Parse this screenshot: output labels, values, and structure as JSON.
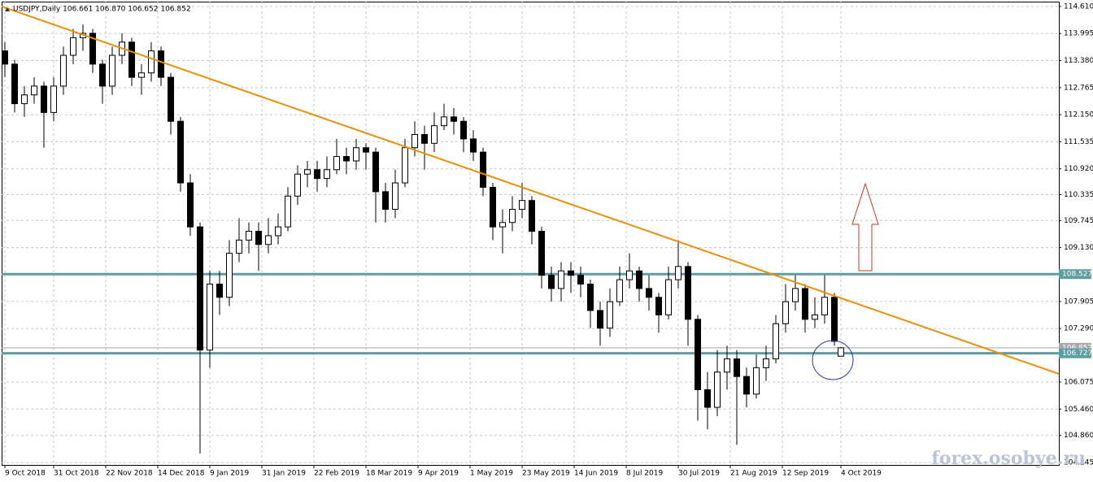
{
  "chart_data": {
    "type": "candlestick",
    "title": "USDJPY,Daily  106.661 106.870 106.652 106.852",
    "watermark": "forex.osobye.ru",
    "xlim": [
      -1,
      324
    ],
    "ylim": [
      104.19,
      114.72
    ],
    "grid": true,
    "up_color": "#ffffff",
    "down_color": "#000000",
    "outline_color": "#000000",
    "xticks": [
      {
        "value": 0,
        "label": "9 Oct 2018"
      },
      {
        "value": 15,
        "label": "31 Oct 2018"
      },
      {
        "value": 31,
        "label": "22 Nov 2018"
      },
      {
        "value": 47,
        "label": "14 Dec 2018"
      },
      {
        "value": 63,
        "label": "9 Jan 2019"
      },
      {
        "value": 79,
        "label": "31 Jan 2019"
      },
      {
        "value": 95,
        "label": "22 Feb 2019"
      },
      {
        "value": 111,
        "label": "18 Mar 2019"
      },
      {
        "value": 127,
        "label": "9 Apr 2019"
      },
      {
        "value": 143,
        "label": "1 May 2019"
      },
      {
        "value": 159,
        "label": "23 May 2019"
      },
      {
        "value": 175,
        "label": "14 Jun 2019"
      },
      {
        "value": 191,
        "label": "8 Jul 2019"
      },
      {
        "value": 207,
        "label": "30 Jul 2019"
      },
      {
        "value": 223,
        "label": "21 Aug 2019"
      },
      {
        "value": 239,
        "label": "12 Sep 2019"
      },
      {
        "value": 257,
        "label": "4 Oct 2019"
      }
    ],
    "yticks": [
      {
        "value": 114.61,
        "label": "114.610"
      },
      113.995,
      {
        "value": 113.38,
        "label": "113.380"
      },
      112.765,
      {
        "value": 112.15,
        "label": "112.150"
      },
      111.535,
      {
        "value": 110.92,
        "label": "110.920"
      },
      110.335,
      109.745,
      {
        "value": 109.13,
        "label": "109.130"
      },
      107.905,
      {
        "value": 107.29,
        "label": "107.290"
      },
      106.075,
      {
        "value": 105.46,
        "label": "105.460"
      },
      {
        "value": 104.86,
        "label": "104.860"
      },
      104.245
    ],
    "levels": [
      {
        "value": 108.527,
        "color": "#5f9ea0"
      },
      {
        "value": 106.727,
        "color": "#5f9ea0"
      }
    ],
    "price_line": {
      "value": 106.852,
      "color": "#a9a9a9"
    },
    "trendline": {
      "color": "#e8900c",
      "x": [
        -1,
        324
      ],
      "y": [
        114.61,
        106.26
      ]
    },
    "x": [
      0,
      3,
      6,
      9,
      12,
      15,
      18,
      21,
      24,
      27,
      30,
      33,
      36,
      39,
      42,
      45,
      48,
      51,
      54,
      57,
      60,
      63,
      66,
      69,
      72,
      75,
      78,
      81,
      84,
      87,
      90,
      93,
      96,
      99,
      102,
      105,
      108,
      111,
      114,
      117,
      120,
      123,
      126,
      129,
      132,
      135,
      138,
      141,
      144,
      147,
      150,
      153,
      156,
      159,
      162,
      165,
      168,
      171,
      174,
      177,
      180,
      183,
      186,
      189,
      192,
      195,
      198,
      201,
      204,
      207,
      210,
      213,
      216,
      219,
      222,
      225,
      228,
      231,
      234,
      237,
      240,
      243,
      246,
      249,
      252,
      255,
      257
    ],
    "open": [
      113.6,
      113.3,
      112.4,
      112.6,
      112.8,
      112.2,
      112.8,
      113.5,
      113.9,
      114.0,
      113.3,
      112.8,
      113.5,
      113.8,
      113.0,
      113.1,
      113.6,
      113.0,
      112.0,
      110.6,
      109.6,
      106.8,
      108.3,
      108.0,
      109.0,
      109.3,
      109.5,
      109.2,
      109.4,
      109.6,
      110.3,
      110.8,
      110.9,
      110.7,
      110.9,
      111.2,
      111.1,
      111.4,
      111.3,
      110.4,
      110.0,
      110.6,
      111.4,
      111.7,
      111.5,
      111.9,
      112.1,
      112.0,
      111.6,
      111.3,
      110.5,
      109.6,
      109.7,
      110.0,
      110.2,
      109.5,
      108.5,
      108.2,
      108.6,
      108.5,
      108.3,
      107.7,
      107.3,
      107.9,
      108.4,
      108.6,
      108.2,
      108.0,
      107.6,
      108.4,
      108.7,
      107.5,
      105.9,
      105.5,
      106.3,
      106.6,
      106.2,
      105.8,
      106.4,
      106.6,
      107.4,
      107.9,
      108.2,
      107.5,
      107.6,
      108.0,
      106.661
    ],
    "high": [
      113.8,
      113.4,
      112.8,
      113.0,
      112.9,
      113.0,
      113.7,
      114.1,
      114.2,
      114.1,
      113.4,
      113.7,
      114.0,
      113.9,
      113.3,
      113.8,
      113.7,
      113.1,
      112.1,
      110.8,
      109.7,
      108.6,
      108.6,
      109.3,
      109.8,
      109.7,
      109.7,
      109.8,
      109.9,
      110.5,
      111.0,
      111.1,
      111.1,
      111.2,
      111.6,
      111.4,
      111.6,
      111.5,
      111.4,
      110.6,
      110.9,
      111.6,
      112.0,
      111.9,
      112.2,
      112.4,
      112.3,
      112.1,
      111.8,
      111.4,
      110.6,
      110.0,
      110.3,
      110.6,
      110.3,
      109.6,
      108.7,
      108.8,
      108.8,
      108.7,
      108.4,
      107.9,
      108.2,
      108.7,
      109.0,
      108.7,
      108.5,
      108.1,
      108.7,
      109.3,
      108.8,
      107.6,
      106.3,
      106.8,
      106.9,
      106.8,
      106.4,
      106.7,
      106.9,
      107.6,
      108.3,
      108.5,
      108.3,
      108.0,
      108.5,
      108.1,
      106.87
    ],
    "low": [
      113.0,
      112.2,
      112.1,
      112.4,
      111.4,
      112.0,
      112.6,
      113.3,
      113.6,
      113.1,
      112.4,
      112.6,
      113.3,
      112.8,
      112.6,
      112.9,
      112.8,
      111.7,
      110.4,
      109.4,
      104.45,
      106.4,
      107.6,
      107.8,
      108.8,
      109.0,
      108.6,
      109.0,
      109.2,
      109.5,
      110.1,
      110.5,
      110.4,
      110.5,
      110.8,
      110.8,
      110.9,
      110.9,
      109.7,
      109.7,
      109.8,
      110.5,
      111.2,
      110.9,
      111.3,
      111.8,
      111.7,
      111.3,
      111.1,
      110.3,
      109.3,
      109.0,
      109.5,
      109.8,
      109.2,
      108.2,
      107.9,
      107.9,
      108.1,
      108.0,
      107.3,
      106.9,
      107.1,
      107.8,
      108.2,
      107.9,
      107.7,
      107.2,
      107.5,
      108.2,
      106.9,
      105.2,
      105.0,
      105.3,
      105.9,
      104.65,
      105.5,
      105.7,
      106.1,
      106.5,
      107.2,
      107.7,
      107.2,
      107.3,
      107.4,
      106.9,
      106.652
    ],
    "close": [
      113.3,
      112.4,
      112.6,
      112.8,
      112.2,
      112.8,
      113.5,
      113.9,
      114.0,
      113.3,
      112.8,
      113.5,
      113.8,
      113.0,
      113.1,
      113.6,
      113.0,
      112.0,
      110.6,
      109.6,
      106.8,
      108.3,
      108.0,
      109.0,
      109.3,
      109.5,
      109.2,
      109.4,
      109.6,
      110.3,
      110.8,
      110.9,
      110.7,
      110.9,
      111.2,
      111.1,
      111.4,
      111.3,
      110.4,
      110.0,
      110.6,
      111.4,
      111.7,
      111.5,
      111.9,
      112.1,
      112.0,
      111.6,
      111.3,
      110.5,
      109.6,
      109.7,
      110.0,
      110.2,
      109.5,
      108.5,
      108.2,
      108.6,
      108.5,
      108.3,
      107.7,
      107.3,
      107.9,
      108.4,
      108.6,
      108.2,
      108.0,
      107.6,
      108.4,
      108.7,
      107.5,
      105.9,
      105.5,
      106.3,
      106.6,
      106.2,
      105.8,
      106.4,
      106.6,
      107.4,
      107.9,
      108.2,
      107.5,
      107.6,
      108.0,
      107.0,
      106.852
    ]
  }
}
